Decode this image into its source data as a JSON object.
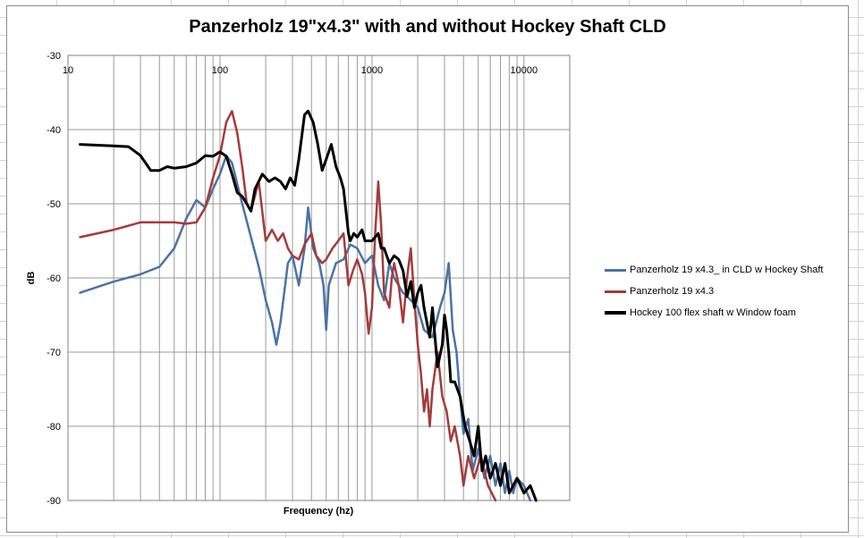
{
  "chart_data": {
    "type": "line",
    "title": "Panzerholz 19\"x4.3\" with and without Hockey Shaft CLD",
    "xlabel": "Frequency (hz)",
    "ylabel": "dB",
    "xscale": "log",
    "xlim": [
      10,
      20000
    ],
    "ylim": [
      -90,
      -30
    ],
    "x_tick_labels": [
      "10",
      "100",
      "1000",
      "10000"
    ],
    "y_tick_labels": [
      "-30",
      "-40",
      "-50",
      "-60",
      "-70",
      "-80",
      "-90"
    ],
    "grid": true,
    "legend_position": "right",
    "series": [
      {
        "name": "Panzerholz 19 x4.3_ in CLD w Hockey Shaft",
        "color": "#4a73a6",
        "points": [
          [
            12,
            -62
          ],
          [
            20,
            -60.5
          ],
          [
            30,
            -59.5
          ],
          [
            40,
            -58.5
          ],
          [
            50,
            -56
          ],
          [
            60,
            -52
          ],
          [
            70,
            -49.5
          ],
          [
            80,
            -50.5
          ],
          [
            90,
            -48
          ],
          [
            100,
            -46
          ],
          [
            110,
            -43.5
          ],
          [
            120,
            -44.5
          ],
          [
            140,
            -50
          ],
          [
            160,
            -54.5
          ],
          [
            180,
            -58.5
          ],
          [
            200,
            -63
          ],
          [
            220,
            -66
          ],
          [
            235,
            -69
          ],
          [
            250,
            -66
          ],
          [
            280,
            -58
          ],
          [
            300,
            -57
          ],
          [
            330,
            -61
          ],
          [
            360,
            -56
          ],
          [
            380,
            -50.5
          ],
          [
            410,
            -56
          ],
          [
            450,
            -58
          ],
          [
            480,
            -61
          ],
          [
            500,
            -67
          ],
          [
            520,
            -61
          ],
          [
            580,
            -58
          ],
          [
            650,
            -57.5
          ],
          [
            720,
            -55.5
          ],
          [
            800,
            -56
          ],
          [
            900,
            -58
          ],
          [
            1000,
            -57
          ],
          [
            1100,
            -61
          ],
          [
            1200,
            -63
          ],
          [
            1300,
            -58
          ],
          [
            1400,
            -60
          ],
          [
            1600,
            -62
          ],
          [
            1800,
            -63
          ],
          [
            2000,
            -64
          ],
          [
            2200,
            -67
          ],
          [
            2500,
            -68
          ],
          [
            2800,
            -64
          ],
          [
            3000,
            -62
          ],
          [
            3200,
            -58
          ],
          [
            3400,
            -67
          ],
          [
            3600,
            -70
          ],
          [
            3800,
            -76
          ],
          [
            4000,
            -81
          ],
          [
            4300,
            -79
          ],
          [
            4600,
            -86
          ],
          [
            5000,
            -83
          ],
          [
            5500,
            -87
          ],
          [
            6000,
            -84
          ],
          [
            6500,
            -88
          ],
          [
            7000,
            -85
          ],
          [
            7500,
            -89
          ],
          [
            8000,
            -86
          ],
          [
            8500,
            -89
          ],
          [
            9000,
            -87
          ],
          [
            10000,
            -88
          ],
          [
            11000,
            -90
          ]
        ]
      },
      {
        "name": "Panzerholz 19 x4.3",
        "color": "#a53b3b",
        "points": [
          [
            12,
            -54.5
          ],
          [
            20,
            -53.5
          ],
          [
            30,
            -52.5
          ],
          [
            40,
            -52.5
          ],
          [
            50,
            -52.5
          ],
          [
            60,
            -52.7
          ],
          [
            70,
            -52.5
          ],
          [
            80,
            -50.5
          ],
          [
            90,
            -46.5
          ],
          [
            100,
            -43.5
          ],
          [
            110,
            -39
          ],
          [
            120,
            -37.5
          ],
          [
            130,
            -40.5
          ],
          [
            140,
            -45
          ],
          [
            150,
            -50
          ],
          [
            160,
            -51
          ],
          [
            180,
            -47
          ],
          [
            200,
            -55
          ],
          [
            220,
            -53.5
          ],
          [
            240,
            -55
          ],
          [
            260,
            -54
          ],
          [
            280,
            -56
          ],
          [
            300,
            -57
          ],
          [
            330,
            -57.5
          ],
          [
            360,
            -55.5
          ],
          [
            400,
            -54
          ],
          [
            430,
            -57
          ],
          [
            470,
            -58
          ],
          [
            500,
            -57.5
          ],
          [
            550,
            -56
          ],
          [
            600,
            -55
          ],
          [
            650,
            -54
          ],
          [
            700,
            -61
          ],
          [
            750,
            -59
          ],
          [
            800,
            -57.5
          ],
          [
            860,
            -59.5
          ],
          [
            900,
            -62
          ],
          [
            950,
            -67.5
          ],
          [
            1000,
            -64
          ],
          [
            1050,
            -54
          ],
          [
            1100,
            -47
          ],
          [
            1150,
            -53
          ],
          [
            1200,
            -62
          ],
          [
            1300,
            -64
          ],
          [
            1350,
            -60
          ],
          [
            1400,
            -58
          ],
          [
            1500,
            -61
          ],
          [
            1600,
            -66
          ],
          [
            1700,
            -60
          ],
          [
            1800,
            -56
          ],
          [
            1900,
            -63
          ],
          [
            2000,
            -69
          ],
          [
            2100,
            -73
          ],
          [
            2200,
            -78
          ],
          [
            2300,
            -75
          ],
          [
            2400,
            -80
          ],
          [
            2500,
            -75
          ],
          [
            2700,
            -70
          ],
          [
            2900,
            -76
          ],
          [
            3100,
            -78
          ],
          [
            3300,
            -82
          ],
          [
            3500,
            -80
          ],
          [
            3800,
            -84
          ],
          [
            4000,
            -88
          ],
          [
            4300,
            -84
          ],
          [
            4700,
            -87
          ],
          [
            5200,
            -84
          ],
          [
            5800,
            -88
          ],
          [
            6500,
            -90
          ]
        ]
      },
      {
        "name": "Hockey 100 flex shaft w Window foam",
        "color": "#000000",
        "points": [
          [
            12,
            -42
          ],
          [
            20,
            -42.2
          ],
          [
            25,
            -42.3
          ],
          [
            30,
            -43.5
          ],
          [
            35,
            -45.5
          ],
          [
            40,
            -45.5
          ],
          [
            45,
            -45
          ],
          [
            50,
            -45.2
          ],
          [
            60,
            -45
          ],
          [
            70,
            -44.5
          ],
          [
            80,
            -43.5
          ],
          [
            90,
            -43.6
          ],
          [
            100,
            -43
          ],
          [
            110,
            -43.6
          ],
          [
            120,
            -46
          ],
          [
            130,
            -48.5
          ],
          [
            140,
            -49
          ],
          [
            150,
            -50
          ],
          [
            160,
            -51
          ],
          [
            170,
            -48
          ],
          [
            190,
            -46
          ],
          [
            210,
            -47
          ],
          [
            230,
            -46.5
          ],
          [
            250,
            -47
          ],
          [
            270,
            -48
          ],
          [
            290,
            -46.5
          ],
          [
            310,
            -47.5
          ],
          [
            330,
            -44
          ],
          [
            360,
            -38
          ],
          [
            380,
            -37.5
          ],
          [
            410,
            -39
          ],
          [
            440,
            -42
          ],
          [
            470,
            -45.5
          ],
          [
            500,
            -44
          ],
          [
            540,
            -42
          ],
          [
            580,
            -45
          ],
          [
            620,
            -46.5
          ],
          [
            650,
            -48
          ],
          [
            700,
            -54
          ],
          [
            720,
            -55
          ],
          [
            760,
            -54
          ],
          [
            800,
            -54.5
          ],
          [
            860,
            -53.5
          ],
          [
            900,
            -55
          ],
          [
            1000,
            -55
          ],
          [
            1100,
            -54
          ],
          [
            1150,
            -56
          ],
          [
            1200,
            -56
          ],
          [
            1300,
            -58
          ],
          [
            1400,
            -57
          ],
          [
            1500,
            -57.5
          ],
          [
            1600,
            -59
          ],
          [
            1700,
            -62.5
          ],
          [
            1800,
            -60.5
          ],
          [
            1900,
            -64
          ],
          [
            2000,
            -62
          ],
          [
            2100,
            -61
          ],
          [
            2200,
            -64
          ],
          [
            2400,
            -68
          ],
          [
            2500,
            -64
          ],
          [
            2700,
            -72
          ],
          [
            2900,
            -69
          ],
          [
            3000,
            -65
          ],
          [
            3100,
            -67
          ],
          [
            3200,
            -70
          ],
          [
            3300,
            -74
          ],
          [
            3500,
            -74
          ],
          [
            3800,
            -76
          ],
          [
            4100,
            -80
          ],
          [
            4400,
            -82
          ],
          [
            4700,
            -84
          ],
          [
            5000,
            -80
          ],
          [
            5300,
            -86
          ],
          [
            5600,
            -84
          ],
          [
            6000,
            -87
          ],
          [
            6500,
            -85
          ],
          [
            7000,
            -88
          ],
          [
            7500,
            -85
          ],
          [
            8000,
            -89
          ],
          [
            9000,
            -87
          ],
          [
            10000,
            -89
          ],
          [
            11000,
            -88
          ],
          [
            12000,
            -90
          ]
        ]
      }
    ]
  }
}
